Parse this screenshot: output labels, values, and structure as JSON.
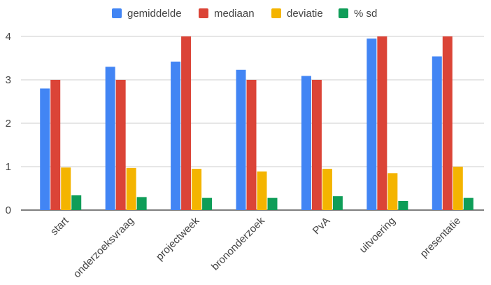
{
  "chart_data": {
    "type": "bar",
    "title": "",
    "xlabel": "",
    "ylabel": "",
    "categories": [
      "start",
      "onderzoeksvraag",
      "projectweek",
      "brononderzoek",
      "PvA",
      "uitvoering",
      "presentatie"
    ],
    "series": [
      {
        "name": "gemiddelde",
        "color": "#4285f4",
        "values": [
          2.8,
          3.3,
          3.42,
          3.23,
          3.09,
          3.95,
          3.54
        ]
      },
      {
        "name": "mediaan",
        "color": "#db4437",
        "values": [
          3,
          3,
          4,
          3,
          3,
          4,
          4
        ]
      },
      {
        "name": "deviatie",
        "color": "#f4b400",
        "values": [
          0.98,
          0.97,
          0.95,
          0.89,
          0.95,
          0.85,
          1.0
        ]
      },
      {
        "name": "% sd",
        "color": "#0f9d58",
        "values": [
          0.34,
          0.3,
          0.28,
          0.28,
          0.32,
          0.21,
          0.28
        ]
      }
    ],
    "ylim": [
      0,
      4
    ],
    "yticks": [
      "0",
      "1",
      "2",
      "3",
      "4"
    ],
    "grid": true,
    "legend_position": "top-center",
    "gridline_color": "#cccccc",
    "label_color": "#444444"
  }
}
